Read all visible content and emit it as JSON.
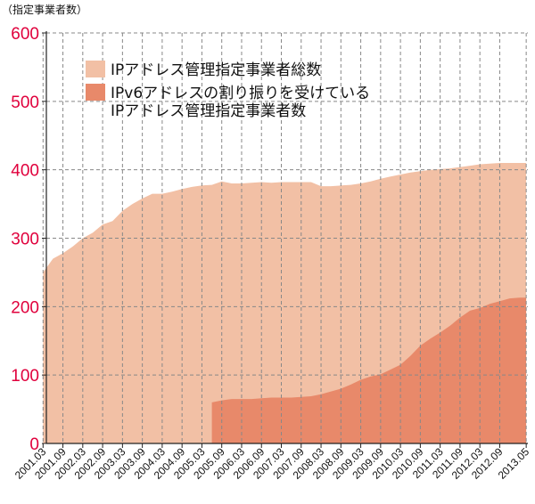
{
  "unit_label": "（指定事業者数）",
  "colors": {
    "total": "#F2C0A5",
    "ipv6": "#E8896A",
    "axis_tick_text": "#E0003C",
    "grid": "#888888",
    "text": "#111111"
  },
  "chart_data": {
    "type": "area",
    "ylim": [
      0,
      600
    ],
    "yticks": [
      0,
      100,
      200,
      300,
      400,
      500,
      600
    ],
    "grid": true,
    "legend_position": "top-left inside plot",
    "x_tick_labels": [
      "2001.03",
      "2001.09",
      "2002.03",
      "2002.09",
      "2003.03",
      "2003.09",
      "2004.03",
      "2004.09",
      "2005.03",
      "2005.09",
      "2006.03",
      "2006.09",
      "2007.03",
      "2007.09",
      "2008.03",
      "2008.09",
      "2009.03",
      "2009.09",
      "2010.03",
      "2010.09",
      "2011.03",
      "2011.09",
      "2012.03",
      "2012.09",
      "2013.05"
    ],
    "series": [
      {
        "name": "IPアドレス管理指定事業者総数",
        "color": "#F2C0A5",
        "points": [
          [
            "2001.03",
            250
          ],
          [
            "2001.06",
            270
          ],
          [
            "2001.09",
            278
          ],
          [
            "2001.12",
            288
          ],
          [
            "2002.03",
            300
          ],
          [
            "2002.06",
            308
          ],
          [
            "2002.09",
            320
          ],
          [
            "2002.12",
            325
          ],
          [
            "2003.03",
            340
          ],
          [
            "2003.06",
            350
          ],
          [
            "2003.09",
            358
          ],
          [
            "2003.12",
            365
          ],
          [
            "2004.03",
            365
          ],
          [
            "2004.06",
            368
          ],
          [
            "2004.09",
            372
          ],
          [
            "2004.12",
            375
          ],
          [
            "2005.03",
            377
          ],
          [
            "2005.06",
            378
          ],
          [
            "2005.09",
            383
          ],
          [
            "2005.12",
            380
          ],
          [
            "2006.03",
            380
          ],
          [
            "2006.06",
            381
          ],
          [
            "2006.09",
            382
          ],
          [
            "2006.12",
            381
          ],
          [
            "2007.03",
            382
          ],
          [
            "2007.06",
            382
          ],
          [
            "2007.09",
            382
          ],
          [
            "2007.12",
            382
          ],
          [
            "2008.03",
            376
          ],
          [
            "2008.06",
            376
          ],
          [
            "2008.09",
            377
          ],
          [
            "2008.12",
            378
          ],
          [
            "2009.03",
            380
          ],
          [
            "2009.06",
            383
          ],
          [
            "2009.09",
            387
          ],
          [
            "2009.12",
            390
          ],
          [
            "2010.03",
            393
          ],
          [
            "2010.06",
            396
          ],
          [
            "2010.09",
            398
          ],
          [
            "2010.12",
            400
          ],
          [
            "2011.03",
            401
          ],
          [
            "2011.06",
            402
          ],
          [
            "2011.09",
            404
          ],
          [
            "2011.12",
            406
          ],
          [
            "2012.03",
            408
          ],
          [
            "2012.06",
            409
          ],
          [
            "2012.09",
            410
          ],
          [
            "2012.12",
            410
          ],
          [
            "2013.03",
            410
          ],
          [
            "2013.05",
            410
          ]
        ]
      },
      {
        "name": "IPv6アドレスの割り振りを受けているIPアドレス管理指定事業者数",
        "legend_lines": [
          "IPv6アドレスの割り振りを受けている",
          "IPアドレス管理指定事業者数"
        ],
        "color": "#E8896A",
        "points": [
          [
            "2005.06",
            0
          ],
          [
            "2005.06",
            60
          ],
          [
            "2005.09",
            63
          ],
          [
            "2005.12",
            65
          ],
          [
            "2006.03",
            65
          ],
          [
            "2006.06",
            65
          ],
          [
            "2006.09",
            66
          ],
          [
            "2006.12",
            67
          ],
          [
            "2007.03",
            67
          ],
          [
            "2007.06",
            67
          ],
          [
            "2007.09",
            68
          ],
          [
            "2007.12",
            69
          ],
          [
            "2008.03",
            72
          ],
          [
            "2008.06",
            76
          ],
          [
            "2008.09",
            80
          ],
          [
            "2008.12",
            86
          ],
          [
            "2009.03",
            93
          ],
          [
            "2009.06",
            98
          ],
          [
            "2009.09",
            101
          ],
          [
            "2009.12",
            108
          ],
          [
            "2010.03",
            115
          ],
          [
            "2010.06",
            128
          ],
          [
            "2010.09",
            143
          ],
          [
            "2010.12",
            153
          ],
          [
            "2011.03",
            162
          ],
          [
            "2011.06",
            172
          ],
          [
            "2011.09",
            184
          ],
          [
            "2011.12",
            194
          ],
          [
            "2012.03",
            198
          ],
          [
            "2012.06",
            204
          ],
          [
            "2012.09",
            208
          ],
          [
            "2012.12",
            212
          ],
          [
            "2013.03",
            213
          ],
          [
            "2013.05",
            213
          ]
        ]
      }
    ]
  }
}
